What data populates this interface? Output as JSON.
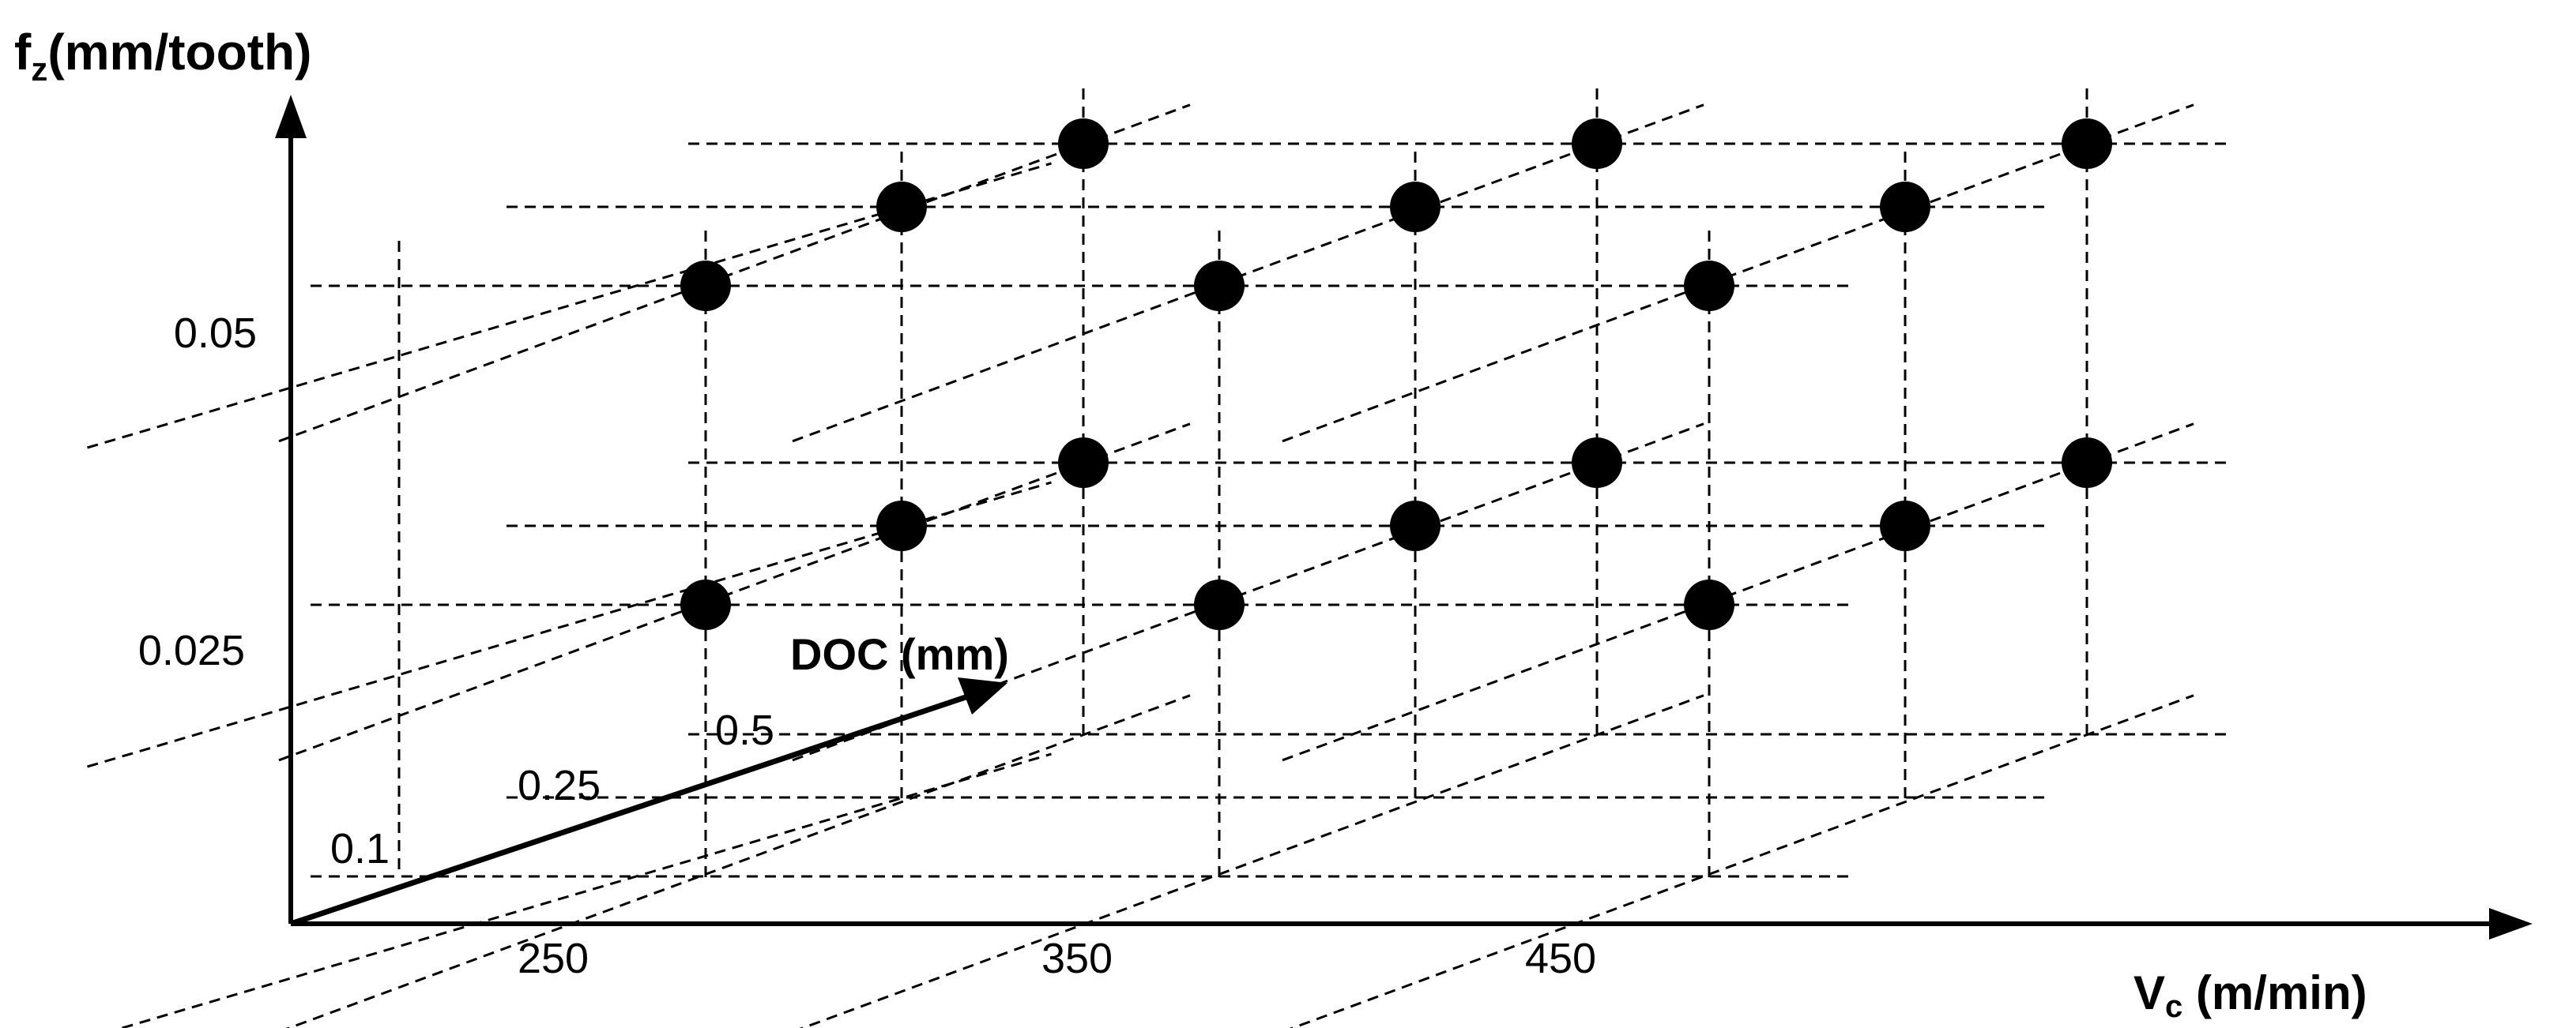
{
  "y_axis": {
    "label_main": "f",
    "label_sub": "z",
    "label_unit": "(mm/tooth)",
    "ticks": [
      "0.05",
      "0.025"
    ]
  },
  "x_axis": {
    "label_main": "V",
    "label_sub": "c",
    "label_unit": " (m/min)",
    "ticks": [
      "250",
      "350",
      "450"
    ]
  },
  "depth_axis": {
    "label": "DOC (mm)",
    "ticks": [
      "0.1",
      "0.25",
      "0.5"
    ]
  },
  "chart_data": {
    "type": "scatter",
    "title": "",
    "axes": [
      "Vc (m/min)",
      "DOC (mm)",
      "fz (mm/tooth)"
    ],
    "levels": {
      "Vc": [
        250,
        350,
        450
      ],
      "DOC": [
        0.1,
        0.25,
        0.5
      ],
      "fz": [
        0.025,
        0.05
      ]
    },
    "points": [
      {
        "vc": 250,
        "doc": 0.1,
        "fz": 0.05
      },
      {
        "vc": 250,
        "doc": 0.25,
        "fz": 0.05
      },
      {
        "vc": 250,
        "doc": 0.5,
        "fz": 0.05
      },
      {
        "vc": 350,
        "doc": 0.1,
        "fz": 0.05
      },
      {
        "vc": 350,
        "doc": 0.25,
        "fz": 0.05
      },
      {
        "vc": 350,
        "doc": 0.5,
        "fz": 0.05
      },
      {
        "vc": 450,
        "doc": 0.1,
        "fz": 0.05
      },
      {
        "vc": 450,
        "doc": 0.25,
        "fz": 0.05
      },
      {
        "vc": 450,
        "doc": 0.5,
        "fz": 0.05
      },
      {
        "vc": 250,
        "doc": 0.1,
        "fz": 0.025
      },
      {
        "vc": 250,
        "doc": 0.25,
        "fz": 0.025
      },
      {
        "vc": 250,
        "doc": 0.5,
        "fz": 0.025
      },
      {
        "vc": 350,
        "doc": 0.1,
        "fz": 0.025
      },
      {
        "vc": 350,
        "doc": 0.25,
        "fz": 0.025
      },
      {
        "vc": 350,
        "doc": 0.5,
        "fz": 0.025
      },
      {
        "vc": 450,
        "doc": 0.1,
        "fz": 0.025
      },
      {
        "vc": 450,
        "doc": 0.25,
        "fz": 0.025
      },
      {
        "vc": 450,
        "doc": 0.5,
        "fz": 0.025
      }
    ]
  }
}
